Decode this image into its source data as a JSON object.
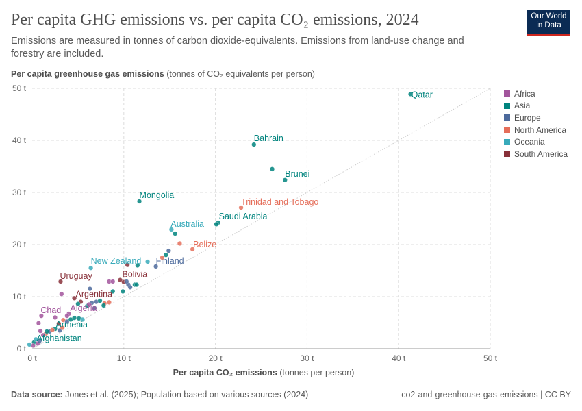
{
  "header": {
    "title": "Per capita GHG emissions vs. per capita CO₂ emissions, 2024",
    "subtitle": "Emissions are measured in tonnes of carbon dioxide-equivalents. Emissions from land-use change and forestry are included.",
    "logo": "Our World in Data"
  },
  "footer": {
    "source_label": "Data source:",
    "source": "Jones et al. (2025); Population based on various sources (2024)",
    "right": "co2-and-greenhouse-gas-emissions | CC BY"
  },
  "chart_data": {
    "type": "scatter",
    "title": "Per capita GHG emissions vs. per capita CO₂ emissions, 2024",
    "ylabel_bold": "Per capita greenhouse gas emissions",
    "ylabel_unit": "(tonnes of CO₂ equivalents per person)",
    "xlabel_bold": "Per capita CO₂ emissions",
    "xlabel_unit": "(tonnes per person)",
    "xlim": [
      0,
      50
    ],
    "ylim": [
      0,
      50
    ],
    "xticks": [
      "0 t",
      "10 t",
      "20 t",
      "30 t",
      "40 t",
      "50 t"
    ],
    "yticks": [
      "0 t",
      "10 t",
      "20 t",
      "30 t",
      "40 t",
      "50 t"
    ],
    "grid": true,
    "reference_line": "y = x",
    "legend_position": "right",
    "legend": [
      {
        "name": "Africa",
        "color": "#a2559c"
      },
      {
        "name": "Asia",
        "color": "#00847e"
      },
      {
        "name": "Europe",
        "color": "#4c6a9c"
      },
      {
        "name": "North America",
        "color": "#e56e5a"
      },
      {
        "name": "Oceania",
        "color": "#38aaba"
      },
      {
        "name": "South America",
        "color": "#883039"
      }
    ],
    "points": [
      {
        "x": 41.3,
        "y": 48.9,
        "region": 1,
        "label": "Qatar"
      },
      {
        "x": 24.2,
        "y": 39.2,
        "region": 1,
        "label": "Bahrain"
      },
      {
        "x": 27.6,
        "y": 32.4,
        "region": 1,
        "label": "Brunei"
      },
      {
        "x": 26.2,
        "y": 34.5,
        "region": 1
      },
      {
        "x": 22.8,
        "y": 27.1,
        "region": 3,
        "label": "Trinidad and Tobago"
      },
      {
        "x": 20.3,
        "y": 24.2,
        "region": 1,
        "label": "Saudi Arabia"
      },
      {
        "x": 20.1,
        "y": 23.9,
        "region": 1
      },
      {
        "x": 11.7,
        "y": 28.3,
        "region": 1,
        "label": "Mongolia"
      },
      {
        "x": 15.2,
        "y": 22.9,
        "region": 4,
        "label": "Australia"
      },
      {
        "x": 15.6,
        "y": 22.1,
        "region": 1
      },
      {
        "x": 16.1,
        "y": 20.2,
        "region": 3
      },
      {
        "x": 17.5,
        "y": 19.1,
        "region": 3,
        "label": "Belize"
      },
      {
        "x": 14.9,
        "y": 18.8,
        "region": 2
      },
      {
        "x": 14.6,
        "y": 18.0,
        "region": 1
      },
      {
        "x": 14.2,
        "y": 17.5,
        "region": 3
      },
      {
        "x": 12.6,
        "y": 16.7,
        "region": 4,
        "label": "New Zealand",
        "lx": 6.4,
        "ly": 15.5
      },
      {
        "x": 6.4,
        "y": 15.5,
        "region": 4
      },
      {
        "x": 13.5,
        "y": 15.8,
        "region": 2,
        "label": "Finland"
      },
      {
        "x": 10.4,
        "y": 16.1,
        "region": 5
      },
      {
        "x": 11.5,
        "y": 16.0,
        "region": 1
      },
      {
        "x": 3.1,
        "y": 12.9,
        "region": 5,
        "label": "Uruguay"
      },
      {
        "x": 9.6,
        "y": 13.2,
        "region": 5,
        "label": "Bolivia"
      },
      {
        "x": 8.4,
        "y": 12.9,
        "region": 0
      },
      {
        "x": 8.8,
        "y": 12.9,
        "region": 0
      },
      {
        "x": 10.0,
        "y": 12.8,
        "region": 5
      },
      {
        "x": 10.5,
        "y": 12.3,
        "region": 2
      },
      {
        "x": 10.3,
        "y": 12.9,
        "region": 2
      },
      {
        "x": 10.7,
        "y": 11.8,
        "region": 2
      },
      {
        "x": 11.2,
        "y": 12.3,
        "region": 1
      },
      {
        "x": 11.4,
        "y": 12.3,
        "region": 1
      },
      {
        "x": 6.3,
        "y": 11.5,
        "region": 2
      },
      {
        "x": 8.8,
        "y": 11.0,
        "region": 1
      },
      {
        "x": 9.9,
        "y": 11.0,
        "region": 1
      },
      {
        "x": 3.2,
        "y": 10.5,
        "region": 0
      },
      {
        "x": 4.6,
        "y": 9.7,
        "region": 5,
        "label": "Argentina"
      },
      {
        "x": 5.3,
        "y": 9.0,
        "region": 5
      },
      {
        "x": 5.0,
        "y": 8.6,
        "region": 1
      },
      {
        "x": 6.5,
        "y": 8.8,
        "region": 2
      },
      {
        "x": 7.0,
        "y": 9.0,
        "region": 2
      },
      {
        "x": 7.4,
        "y": 9.2,
        "region": 1
      },
      {
        "x": 7.9,
        "y": 8.7,
        "region": 3
      },
      {
        "x": 8.4,
        "y": 8.9,
        "region": 3
      },
      {
        "x": 7.8,
        "y": 8.3,
        "region": 1
      },
      {
        "x": 6.0,
        "y": 8.2,
        "region": 1
      },
      {
        "x": 6.8,
        "y": 7.8,
        "region": 2
      },
      {
        "x": 6.2,
        "y": 8.5,
        "region": 0
      },
      {
        "x": 1.0,
        "y": 6.3,
        "region": 0,
        "label": "Chad"
      },
      {
        "x": 4.0,
        "y": 6.7,
        "region": 0,
        "label": "Algeria"
      },
      {
        "x": 0.7,
        "y": 4.9,
        "region": 0
      },
      {
        "x": 2.5,
        "y": 6.0,
        "region": 0
      },
      {
        "x": 3.8,
        "y": 6.3,
        "region": 0
      },
      {
        "x": 4.2,
        "y": 5.6,
        "region": 1
      },
      {
        "x": 4.6,
        "y": 5.9,
        "region": 1
      },
      {
        "x": 5.1,
        "y": 5.8,
        "region": 1
      },
      {
        "x": 5.5,
        "y": 5.6,
        "region": 4
      },
      {
        "x": 3.4,
        "y": 5.5,
        "region": 3
      },
      {
        "x": 3.8,
        "y": 5.2,
        "region": 2
      },
      {
        "x": 2.9,
        "y": 4.8,
        "region": 5
      },
      {
        "x": 2.5,
        "y": 3.8,
        "region": 1,
        "label": "Armenia"
      },
      {
        "x": 1.9,
        "y": 3.3,
        "region": 2
      },
      {
        "x": 2.2,
        "y": 3.6,
        "region": 3
      },
      {
        "x": 3.0,
        "y": 3.5,
        "region": 2
      },
      {
        "x": 1.5,
        "y": 2.9,
        "region": 3
      },
      {
        "x": 1.2,
        "y": 2.6,
        "region": 0
      },
      {
        "x": 0.9,
        "y": 3.4,
        "region": 0
      },
      {
        "x": 3.3,
        "y": 4.0,
        "region": 3
      },
      {
        "x": 1.6,
        "y": 3.3,
        "region": 1
      },
      {
        "x": 0.2,
        "y": 1.2,
        "region": 1,
        "label": "Afghanistan"
      },
      {
        "x": 0.1,
        "y": 0.6,
        "region": 0
      },
      {
        "x": 0.4,
        "y": 1.8,
        "region": 4
      },
      {
        "x": 0.6,
        "y": 1.0,
        "region": 0
      },
      {
        "x": -0.3,
        "y": 0.8,
        "region": 4
      },
      {
        "x": 0.8,
        "y": 1.5,
        "region": 2
      }
    ]
  }
}
